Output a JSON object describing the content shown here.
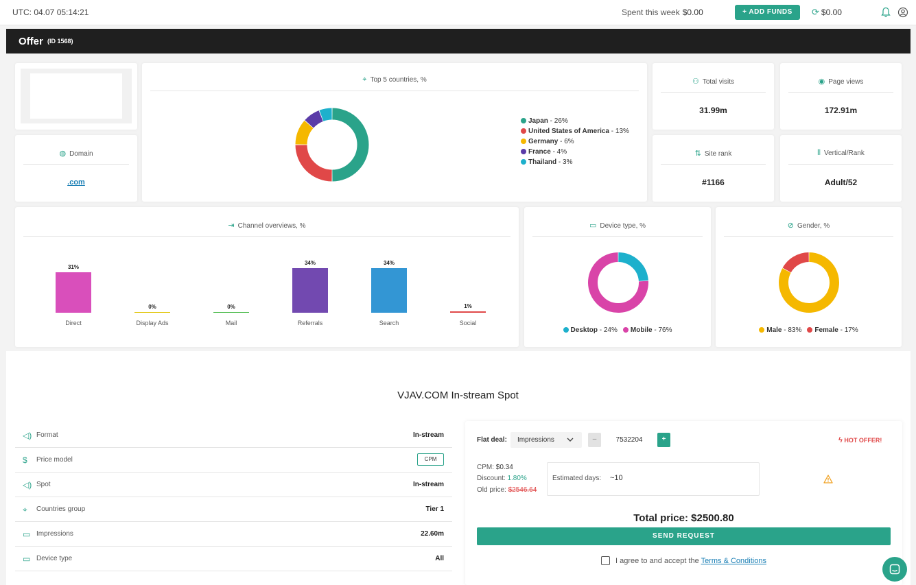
{
  "topbar": {
    "utc": "UTC: 04.07 05:14:21",
    "spent_label": "Spent this week",
    "spent_value": "$0.00",
    "add_funds": "+ ADD FUNDS",
    "balance": "$0.00"
  },
  "offer": {
    "title": "Offer",
    "id": "(ID 1568)"
  },
  "domain": {
    "title": "Domain",
    "value": ".com"
  },
  "countries": {
    "title": "Top 5 countries, %",
    "items": [
      {
        "name": "Japan",
        "pct": "26%",
        "value": 26,
        "color": "#2aa38a"
      },
      {
        "name": "United States of America",
        "pct": "13%",
        "value": 13,
        "color": "#e04848"
      },
      {
        "name": "Germany",
        "pct": "6%",
        "value": 6,
        "color": "#f5b800"
      },
      {
        "name": "France",
        "pct": "4%",
        "value": 4,
        "color": "#5a3ba8"
      },
      {
        "name": "Thailand",
        "pct": "3%",
        "value": 3,
        "color": "#1db0cc"
      }
    ]
  },
  "stats": {
    "visits_title": "Total visits",
    "visits_value": "31.99m",
    "views_title": "Page views",
    "views_value": "172.91m",
    "rank_title": "Site rank",
    "rank_value": "#1166",
    "vertical_title": "Vertical/Rank",
    "vertical_value": "Adult/52"
  },
  "channel": {
    "title": "Channel overviews, %"
  },
  "device": {
    "title": "Device type, %",
    "items": [
      {
        "name": "Desktop",
        "pct": "24%",
        "value": 24,
        "color": "#1db0cc"
      },
      {
        "name": "Mobile",
        "pct": "76%",
        "value": 76,
        "color": "#d944a8"
      }
    ]
  },
  "gender": {
    "title": "Gender, %",
    "items": [
      {
        "name": "Male",
        "pct": "83%",
        "value": 83,
        "color": "#f5b800"
      },
      {
        "name": "Female",
        "pct": "17%",
        "value": 17,
        "color": "#e04848"
      }
    ]
  },
  "chart_data": {
    "type": "bar",
    "categories": [
      "Direct",
      "Display Ads",
      "Mail",
      "Referrals",
      "Search",
      "Social"
    ],
    "values": [
      31,
      0,
      0,
      34,
      34,
      1
    ],
    "labels": [
      "31%",
      "0%",
      "0%",
      "34%",
      "34%",
      "1%"
    ],
    "colors": [
      "#d94fbb",
      "#e0c300",
      "#45b845",
      "#7249b0",
      "#3396d4",
      "#e04848"
    ],
    "title": "Channel overviews, %",
    "ylim": [
      0,
      34
    ]
  },
  "spot": {
    "heading": "VJAV.COM In-stream Spot",
    "rows": [
      {
        "icon": "speaker-icon",
        "label": "Format",
        "value": "In-stream"
      },
      {
        "icon": "dollar-icon",
        "label": "Price model",
        "value": "CPM"
      },
      {
        "icon": "speaker-icon",
        "label": "Spot",
        "value": "In-stream"
      },
      {
        "icon": "pin-icon",
        "label": "Countries group",
        "value": "Tier 1"
      },
      {
        "icon": "monitor-icon",
        "label": "Impressions",
        "value": "22.60m"
      },
      {
        "icon": "devices-icon",
        "label": "Device type",
        "value": "All"
      }
    ]
  },
  "deal": {
    "flat_label": "Flat deal:",
    "select_value": "Impressions",
    "qty": "7532204",
    "hot": "HOT OFFER!",
    "cpm_label": "CPM:",
    "cpm_value": "$0.34",
    "discount_label": "Discount:",
    "discount_value": "1.80%",
    "old_label": "Old price:",
    "old_value": "$2546.64",
    "est_label": "Estimated days:",
    "est_value": "~10",
    "total_label": "Total price:",
    "total_value": "$2500.80",
    "send": "SEND REQUEST",
    "agree": "I agree to and accept the",
    "terms": "Terms & Conditions"
  }
}
